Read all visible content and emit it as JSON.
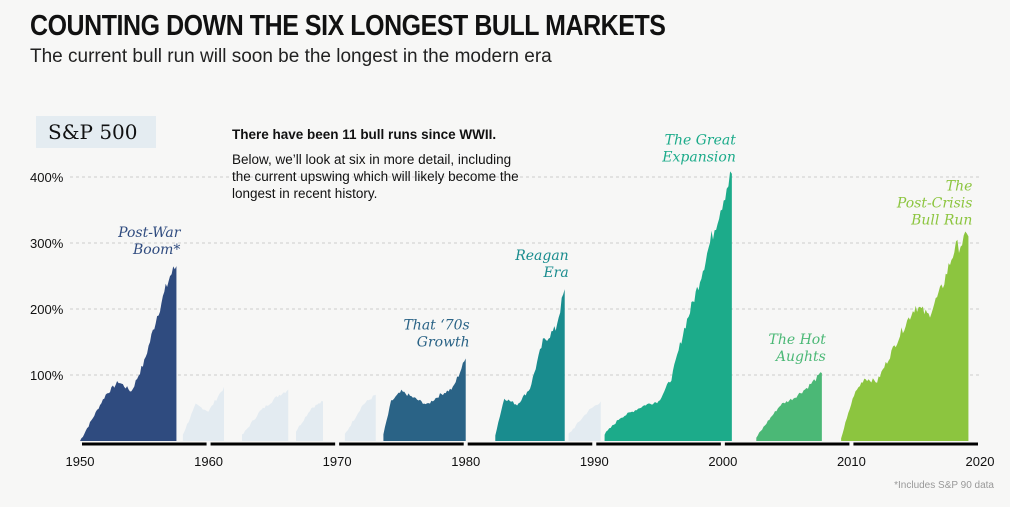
{
  "header": {
    "title": "COUNTING DOWN THE SIX LONGEST BULL MARKETS",
    "subtitle": "The current bull run will soon be the longest in the modern era"
  },
  "badge": "S&P 500",
  "note": {
    "headline": "There have been 11 bull runs since WWII.",
    "body": "Below, we’ll look at six in more detail, including the current upswing which will likely become the longest in recent history."
  },
  "footnote": "*Includes S&P 90 data",
  "chart_data": {
    "type": "area",
    "xlim": [
      1950,
      2020
    ],
    "ylim": [
      0,
      400
    ],
    "x_ticks": [
      "1950",
      "1960",
      "1970",
      "1980",
      "1990",
      "2000",
      "2010",
      "2020"
    ],
    "y_ticks": [
      "100%",
      "200%",
      "300%",
      "400%"
    ],
    "grid": true,
    "runs": [
      {
        "name": "Post-War Boom*",
        "label_lines": [
          "Post-War",
          "Boom*"
        ],
        "highlight": true,
        "color": "#2f4b7f",
        "points": [
          [
            1950,
            0
          ],
          [
            1951,
            35
          ],
          [
            1952,
            70
          ],
          [
            1953,
            90
          ],
          [
            1954,
            75
          ],
          [
            1955,
            120
          ],
          [
            1956,
            190
          ],
          [
            1957,
            250
          ],
          [
            1957.5,
            265
          ]
        ]
      },
      {
        "name": "",
        "highlight": false,
        "color": "#e3ebf1",
        "points": [
          [
            1958,
            10
          ],
          [
            1959,
            55
          ],
          [
            1960,
            45
          ],
          [
            1961.2,
            82
          ]
        ]
      },
      {
        "name": "",
        "highlight": false,
        "color": "#e3ebf1",
        "points": [
          [
            1962.6,
            8
          ],
          [
            1964,
            45
          ],
          [
            1965.5,
            70
          ],
          [
            1966.2,
            78
          ]
        ]
      },
      {
        "name": "",
        "highlight": false,
        "color": "#e3ebf1",
        "points": [
          [
            1966.8,
            15
          ],
          [
            1968,
            50
          ],
          [
            1968.9,
            60
          ]
        ]
      },
      {
        "name": "",
        "highlight": false,
        "color": "#e3ebf1",
        "points": [
          [
            1970.6,
            10
          ],
          [
            1972,
            55
          ],
          [
            1973,
            70
          ]
        ]
      },
      {
        "name": "That ‘70s Growth",
        "label_lines": [
          "That ‘70s",
          "Growth"
        ],
        "highlight": true,
        "color": "#2a6386",
        "points": [
          [
            1973.6,
            10
          ],
          [
            1974.2,
            60
          ],
          [
            1975,
            75
          ],
          [
            1976,
            65
          ],
          [
            1977,
            55
          ],
          [
            1978,
            70
          ],
          [
            1979,
            80
          ],
          [
            1980,
            125
          ]
        ]
      },
      {
        "name": "Reagan Era",
        "label_lines": [
          "Reagan",
          "Era"
        ],
        "highlight": true,
        "color": "#198c8e",
        "points": [
          [
            1982.3,
            10
          ],
          [
            1983,
            65
          ],
          [
            1984,
            55
          ],
          [
            1985,
            80
          ],
          [
            1986,
            150
          ],
          [
            1987,
            170
          ],
          [
            1987.7,
            230
          ]
        ]
      },
      {
        "name": "",
        "highlight": false,
        "color": "#e3ebf1",
        "points": [
          [
            1988,
            10
          ],
          [
            1989.5,
            45
          ],
          [
            1990.5,
            60
          ]
        ]
      },
      {
        "name": "The Great Expansion",
        "label_lines": [
          "The Great",
          "Expansion"
        ],
        "highlight": true,
        "color": "#1cab8a",
        "points": [
          [
            1990.8,
            10
          ],
          [
            1992,
            35
          ],
          [
            1994,
            55
          ],
          [
            1995,
            60
          ],
          [
            1996,
            95
          ],
          [
            1997,
            170
          ],
          [
            1998,
            230
          ],
          [
            1999,
            300
          ],
          [
            2000.3,
            385
          ],
          [
            2000.7,
            405
          ]
        ]
      },
      {
        "name": "The Hot Aughts",
        "label_lines": [
          "The Hot",
          "Aughts"
        ],
        "highlight": true,
        "color": "#4bb876",
        "points": [
          [
            2002.6,
            5
          ],
          [
            2003.5,
            30
          ],
          [
            2004.5,
            55
          ],
          [
            2005.5,
            65
          ],
          [
            2006.5,
            80
          ],
          [
            2007.7,
            103
          ]
        ]
      },
      {
        "name": "The Post-Crisis Bull Run",
        "label_lines": [
          "The",
          "Post-Crisis",
          "Bull Run"
        ],
        "highlight": true,
        "color": "#8cc53f",
        "points": [
          [
            2009.2,
            5
          ],
          [
            2010.2,
            70
          ],
          [
            2011,
            95
          ],
          [
            2012,
            90
          ],
          [
            2013,
            130
          ],
          [
            2014,
            170
          ],
          [
            2015,
            205
          ],
          [
            2016,
            190
          ],
          [
            2017,
            230
          ],
          [
            2018,
            290
          ],
          [
            2019.1,
            310
          ]
        ]
      }
    ]
  }
}
